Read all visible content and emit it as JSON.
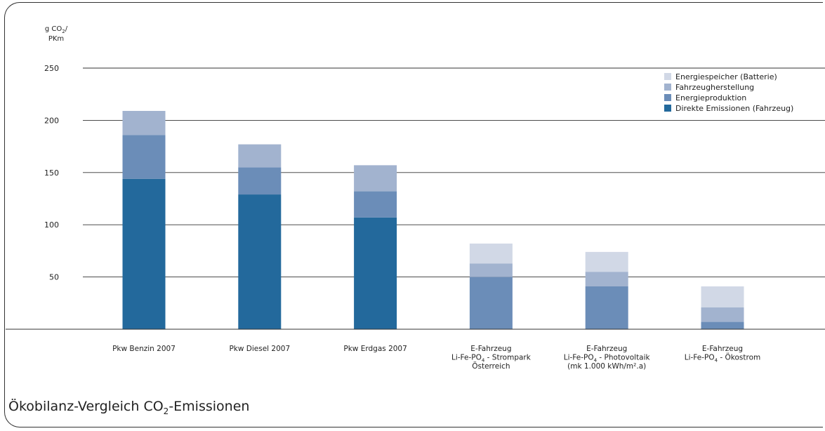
{
  "caption": {
    "prefix": "Ökobilanz-Vergleich CO",
    "sub": "2",
    "suffix": "-Emissionen"
  },
  "chart_data": {
    "type": "bar",
    "stacked": true,
    "ylabel_line1_prefix": "g CO",
    "ylabel_line1_sub": "2",
    "ylabel_line1_suffix": "/",
    "ylabel_line2": "PKm",
    "ylim": [
      0,
      250
    ],
    "yticks": [
      50,
      100,
      150,
      200,
      250
    ],
    "grid": true,
    "legend_position": "top-right",
    "categories": [
      {
        "lines": [
          [
            {
              "t": "Pkw Benzin 2007"
            }
          ]
        ]
      },
      {
        "lines": [
          [
            {
              "t": "Pkw Diesel 2007"
            }
          ]
        ]
      },
      {
        "lines": [
          [
            {
              "t": "Pkw Erdgas 2007"
            }
          ]
        ]
      },
      {
        "lines": [
          [
            {
              "t": "E-Fahrzeug"
            }
          ],
          [
            {
              "t": "Li-Fe-PO"
            },
            {
              "t": "4",
              "sub": true
            },
            {
              "t": " - Strompark"
            }
          ],
          [
            {
              "t": "Österreich"
            }
          ]
        ]
      },
      {
        "lines": [
          [
            {
              "t": "E-Fahrzeug"
            }
          ],
          [
            {
              "t": "Li-Fe-PO"
            },
            {
              "t": "4",
              "sub": true
            },
            {
              "t": " - Photovoltaik"
            }
          ],
          [
            {
              "t": "(mk 1.000 kWh/m².a)"
            }
          ]
        ]
      },
      {
        "lines": [
          [
            {
              "t": "E-Fahrzeug"
            }
          ],
          [
            {
              "t": "Li-Fe-PO"
            },
            {
              "t": "4",
              "sub": true
            },
            {
              "t": " - Ökostrom"
            }
          ]
        ]
      }
    ],
    "series": [
      {
        "name": "Direkte Emissionen (Fahrzeug)",
        "color": "#23699c",
        "values": [
          144,
          129,
          107,
          0,
          0,
          0
        ]
      },
      {
        "name": "Energieproduktion",
        "color": "#6b8db8",
        "values": [
          42,
          26,
          25,
          50,
          41,
          7
        ]
      },
      {
        "name": "Fahrzeugherstellung",
        "color": "#a2b3cf",
        "values": [
          23,
          22,
          25,
          13,
          14,
          14
        ]
      },
      {
        "name": "Energiespeicher (Batterie)",
        "color": "#d1d8e6",
        "values": [
          0,
          0,
          0,
          19,
          19,
          20
        ]
      }
    ],
    "legend_order": [
      3,
      2,
      1,
      0
    ]
  }
}
